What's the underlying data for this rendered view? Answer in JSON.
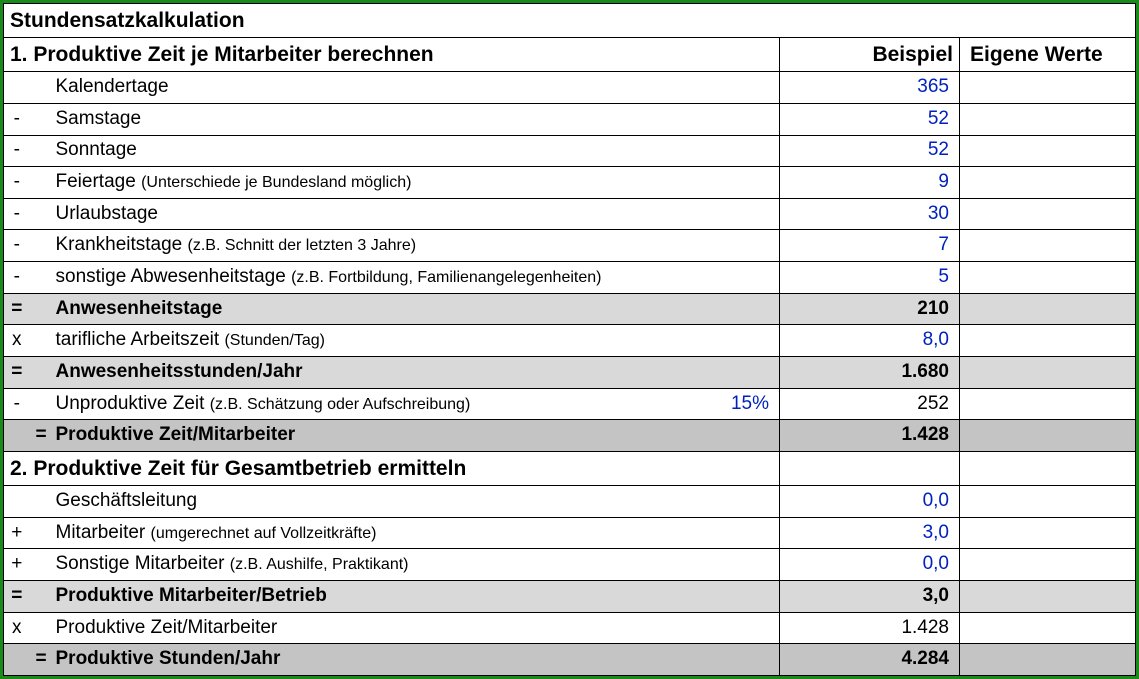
{
  "colors": {
    "outer_border": "#1a8a1a",
    "cell_border": "#000000",
    "value_input": "#0020c0",
    "bg_light": "#d9d9d9",
    "bg_mid": "#c4c4c4",
    "bg_dark": "#b0b0b0",
    "background": "#ffffff"
  },
  "title": "Stundensatzkalkulation",
  "headers": {
    "example": "Beispiel",
    "own": "Eigene Werte"
  },
  "s1": {
    "heading": "1. Produktive Zeit je Mitarbeiter berechnen",
    "r0": {
      "op": "",
      "label": "Kalendertage",
      "note": "",
      "val": "365"
    },
    "r1": {
      "op": "-",
      "label": "Samstage",
      "note": "",
      "val": "52"
    },
    "r2": {
      "op": "-",
      "label": "Sonntage",
      "note": "",
      "val": "52"
    },
    "r3": {
      "op": "-",
      "label": "Feiertage",
      "note": "(Unterschiede je Bundesland möglich)",
      "val": "9"
    },
    "r4": {
      "op": "-",
      "label": "Urlaubstage",
      "note": "",
      "val": "30"
    },
    "r5": {
      "op": "-",
      "label": "Krankheitstage",
      "note": "(z.B. Schnitt der letzten 3 Jahre)",
      "val": "7"
    },
    "r6": {
      "op": "-",
      "label": "sonstige Abwesenheitstage",
      "note": "(z.B. Fortbildung, Familienangelegenheiten)",
      "val": "5"
    },
    "r7": {
      "op": "=",
      "label": "Anwesenheitstage",
      "note": "",
      "val": "210"
    },
    "r8": {
      "op": "x",
      "label": "tarifliche Arbeitszeit",
      "note": "(Stunden/Tag)",
      "val": "8,0"
    },
    "r9": {
      "op": "=",
      "label": "Anwesenheitsstunden/Jahr",
      "note": "",
      "val": "1.680"
    },
    "r10": {
      "op": "-",
      "label": "Unproduktive Zeit",
      "note": "(z.B. Schätzung oder Aufschreibung)",
      "pct": "15%",
      "val": "252"
    },
    "r11": {
      "op": "=",
      "label": "Produktive Zeit/Mitarbeiter",
      "note": "",
      "val": "1.428"
    }
  },
  "s2": {
    "heading": "2. Produktive Zeit für Gesamtbetrieb ermitteln",
    "r0": {
      "op": "",
      "label": "Geschäftsleitung",
      "note": "",
      "val": "0,0"
    },
    "r1": {
      "op": "+",
      "label": "Mitarbeiter",
      "note": "(umgerechnet auf Vollzeitkräfte)",
      "val": "3,0"
    },
    "r2": {
      "op": "+",
      "label": "Sonstige Mitarbeiter",
      "note": "(z.B. Aushilfe, Praktikant)",
      "val": "0,0"
    },
    "r3": {
      "op": "=",
      "label": "Produktive Mitarbeiter/Betrieb",
      "note": "",
      "val": "3,0"
    },
    "r4": {
      "op": "x",
      "label": "Produktive Zeit/Mitarbeiter",
      "note": "",
      "val": "1.428"
    },
    "r5": {
      "op": "=",
      "label": "Produktive Stunden/Jahr",
      "note": "",
      "val": "4.284"
    }
  }
}
